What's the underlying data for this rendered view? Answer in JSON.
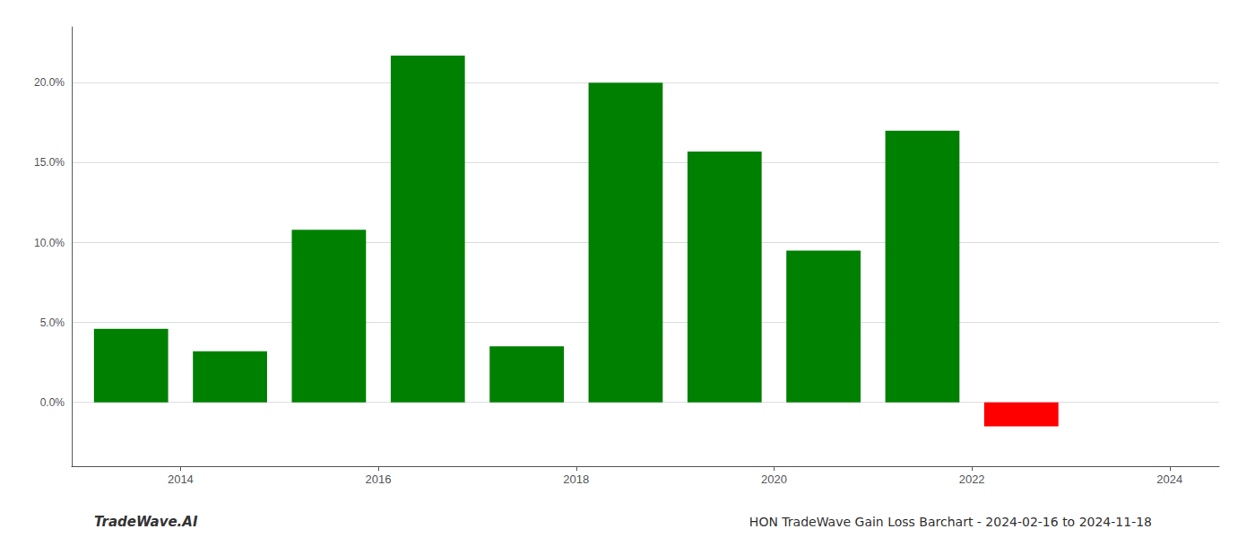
{
  "chart_data": {
    "type": "bar",
    "title": "HON TradeWave Gain Loss Barchart - 2024-02-16 to 2024-11-18",
    "annotations": [
      "TradeWave.AI"
    ],
    "x": [
      2013.5,
      2014.5,
      2015.5,
      2016.5,
      2017.5,
      2018.5,
      2019.5,
      2020.5,
      2021.5,
      2022.5
    ],
    "values": [
      0.046,
      0.032,
      0.108,
      0.217,
      0.035,
      0.2,
      0.157,
      0.095,
      0.17,
      -0.015
    ],
    "colors": [
      "#008000",
      "#008000",
      "#008000",
      "#008000",
      "#008000",
      "#008000",
      "#008000",
      "#008000",
      "#008000",
      "#ff0000"
    ],
    "xlim": [
      2012.9,
      2024.5
    ],
    "xticks": [
      2014,
      2016,
      2018,
      2020,
      2022,
      2024
    ],
    "ylim": [
      -0.04,
      0.235
    ],
    "yticks": [
      {
        "value": 0.0,
        "label": "0.0%"
      },
      {
        "value": 0.05,
        "label": "5.0%"
      },
      {
        "value": 0.1,
        "label": "10.0%"
      },
      {
        "value": 0.15,
        "label": "15.0%"
      },
      {
        "value": 0.2,
        "label": "20.0%"
      }
    ],
    "grid": true
  }
}
